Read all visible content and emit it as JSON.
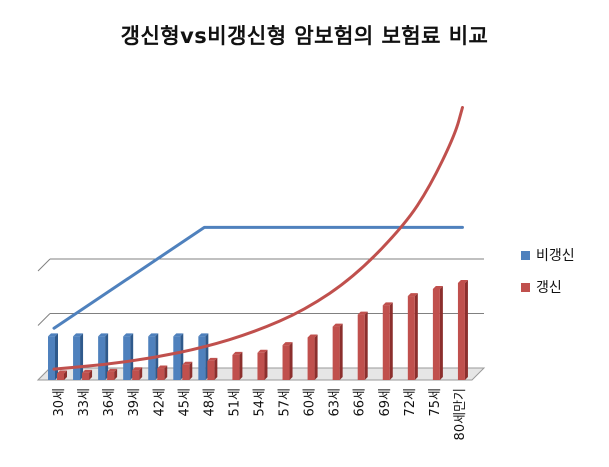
{
  "chart_data": {
    "type": "bar",
    "title": "갱신형vs비갱신형 암보험의 보험료 비교",
    "categories": [
      "30세",
      "33세",
      "36세",
      "39세",
      "42세",
      "45세",
      "48세",
      "51세",
      "54세",
      "57세",
      "60세",
      "63세",
      "66세",
      "69세",
      "72세",
      "75세",
      "80세만기"
    ],
    "series": [
      {
        "name": "비갱신",
        "color": "#4F81BD",
        "values": [
          8,
          8,
          8,
          8,
          8,
          8,
          8,
          null,
          null,
          null,
          null,
          null,
          null,
          null,
          null,
          null,
          null
        ]
      },
      {
        "name": "갱신",
        "color": "#C0504D",
        "values": [
          1.2,
          1.3,
          1.5,
          1.8,
          2.1,
          2.8,
          3.5,
          4.6,
          5.0,
          6.4,
          7.8,
          9.8,
          12.0,
          13.7,
          15.4,
          16.7,
          17.8
        ]
      }
    ],
    "trendlines": [
      {
        "series": "비갱신",
        "color": "#4F81BD",
        "points": [
          [
            0,
            9.5
          ],
          [
            6,
            28
          ],
          [
            16.3,
            28
          ]
        ]
      },
      {
        "series": "갱신",
        "color": "#C0504D",
        "points": [
          [
            0,
            2.0
          ],
          [
            2,
            2.8
          ],
          [
            4,
            4.1
          ],
          [
            6,
            6.0
          ],
          [
            8,
            8.8
          ],
          [
            10,
            12.8
          ],
          [
            12,
            19.0
          ],
          [
            14,
            28.5
          ],
          [
            15,
            35.5
          ],
          [
            16,
            45.0
          ],
          [
            16.3,
            50.0
          ]
        ]
      }
    ],
    "ylim": [
      0,
      50
    ],
    "grid": true,
    "legend": "right"
  }
}
